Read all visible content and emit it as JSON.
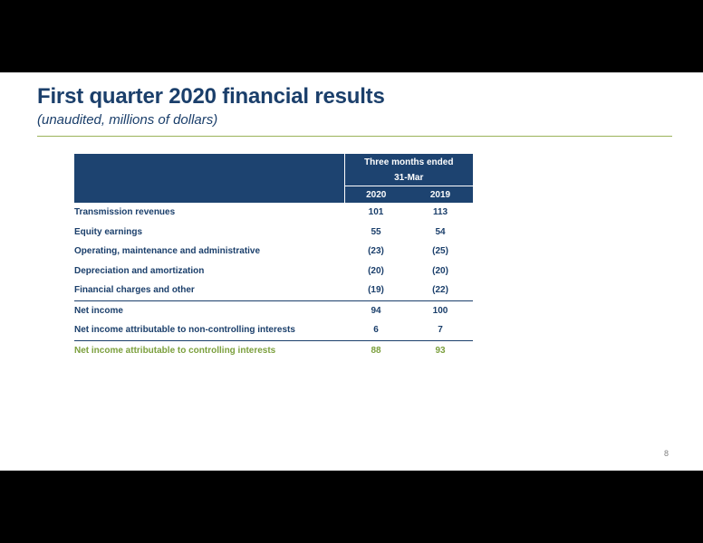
{
  "slide": {
    "title": "First quarter 2020 financial results",
    "subtitle": "(unaudited, millions of dollars)",
    "page_number": "8"
  },
  "table": {
    "header_group_line1": "Three months ended",
    "header_group_line2": "31-Mar",
    "columns": [
      "2020",
      "2019"
    ],
    "rows": [
      {
        "label": "Transmission revenues",
        "v2020": "101",
        "v2019": "113"
      },
      {
        "label": "Equity earnings",
        "v2020": "55",
        "v2019": "54"
      },
      {
        "label": "Operating, maintenance and administrative",
        "v2020": "(23)",
        "v2019": "(25)"
      },
      {
        "label": "Depreciation and amortization",
        "v2020": "(20)",
        "v2019": "(20)"
      },
      {
        "label": "Financial charges and other",
        "v2020": "(19)",
        "v2019": "(22)"
      },
      {
        "label": "Net income",
        "v2020": "94",
        "v2019": "100"
      },
      {
        "label": "Net income attributable to non-controlling interests",
        "v2020": "6",
        "v2019": "7"
      },
      {
        "label": "Net income attributable to controlling interests",
        "v2020": "88",
        "v2019": "93"
      }
    ]
  },
  "colors": {
    "title_blue": "#1b3f6b",
    "header_fill": "#1d4370",
    "accent_green": "#7b9f3d",
    "rule_green": "#9bb35a"
  }
}
